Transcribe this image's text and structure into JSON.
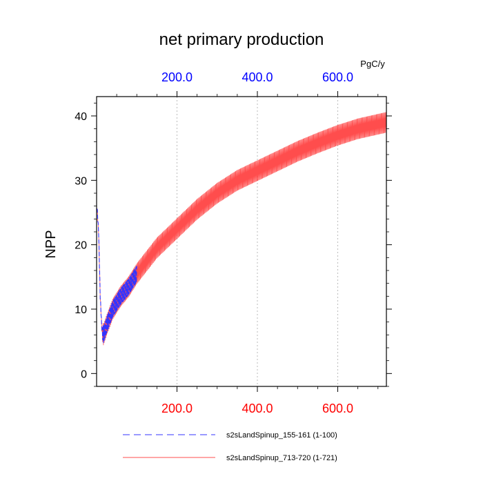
{
  "chart_data": {
    "type": "line",
    "title": "net primary production",
    "ylabel": "NPP",
    "units": "PgC/y",
    "xlim": [
      0,
      721
    ],
    "ylim": [
      -2,
      43
    ],
    "grid_x": [
      200,
      400,
      600
    ],
    "top_ticks": [
      "200.0",
      "400.0",
      "600.0"
    ],
    "top_tick_values": [
      200,
      400,
      600
    ],
    "bottom_ticks": [
      "200.0",
      "400.0",
      "600.0"
    ],
    "bottom_tick_values": [
      200,
      400,
      600
    ],
    "y_ticks": [
      "0",
      "10",
      "20",
      "30",
      "40"
    ],
    "y_tick_values": [
      0,
      10,
      20,
      30,
      40
    ],
    "colors": {
      "series_blue": "#3333ff",
      "series_red": "#ff4d4d",
      "top_axis": "#0000ff",
      "bottom_axis": "#ff0000",
      "grid": "#bbbbbb"
    },
    "series": [
      {
        "name": "s2sLandSpinup_155-161 (1-100)",
        "color": "#3333ff",
        "style": "dashed",
        "x_range": [
          1,
          100
        ],
        "trend": [
          [
            1,
            26
          ],
          [
            5,
            22
          ],
          [
            9,
            12
          ],
          [
            13,
            7
          ],
          [
            17,
            6
          ],
          [
            25,
            7.5
          ],
          [
            40,
            10
          ],
          [
            60,
            12
          ],
          [
            80,
            13.5
          ],
          [
            100,
            15.5
          ]
        ],
        "amplitude": 1.3
      },
      {
        "name": "s2sLandSpinup_713-720 (1-721)",
        "color": "#ff4d4d",
        "style": "solid",
        "x_range": [
          1,
          721
        ],
        "trend": [
          [
            1,
            26
          ],
          [
            5,
            22
          ],
          [
            9,
            12
          ],
          [
            13,
            7
          ],
          [
            17,
            6
          ],
          [
            25,
            7.5
          ],
          [
            40,
            10
          ],
          [
            60,
            12
          ],
          [
            80,
            13.5
          ],
          [
            100,
            15.5
          ],
          [
            150,
            19.5
          ],
          [
            200,
            22.5
          ],
          [
            250,
            25.5
          ],
          [
            300,
            28
          ],
          [
            350,
            30
          ],
          [
            400,
            31.5
          ],
          [
            450,
            33
          ],
          [
            500,
            34.5
          ],
          [
            550,
            35.8
          ],
          [
            600,
            37
          ],
          [
            650,
            38
          ],
          [
            721,
            39
          ]
        ],
        "amplitude": 1.6
      }
    ]
  }
}
